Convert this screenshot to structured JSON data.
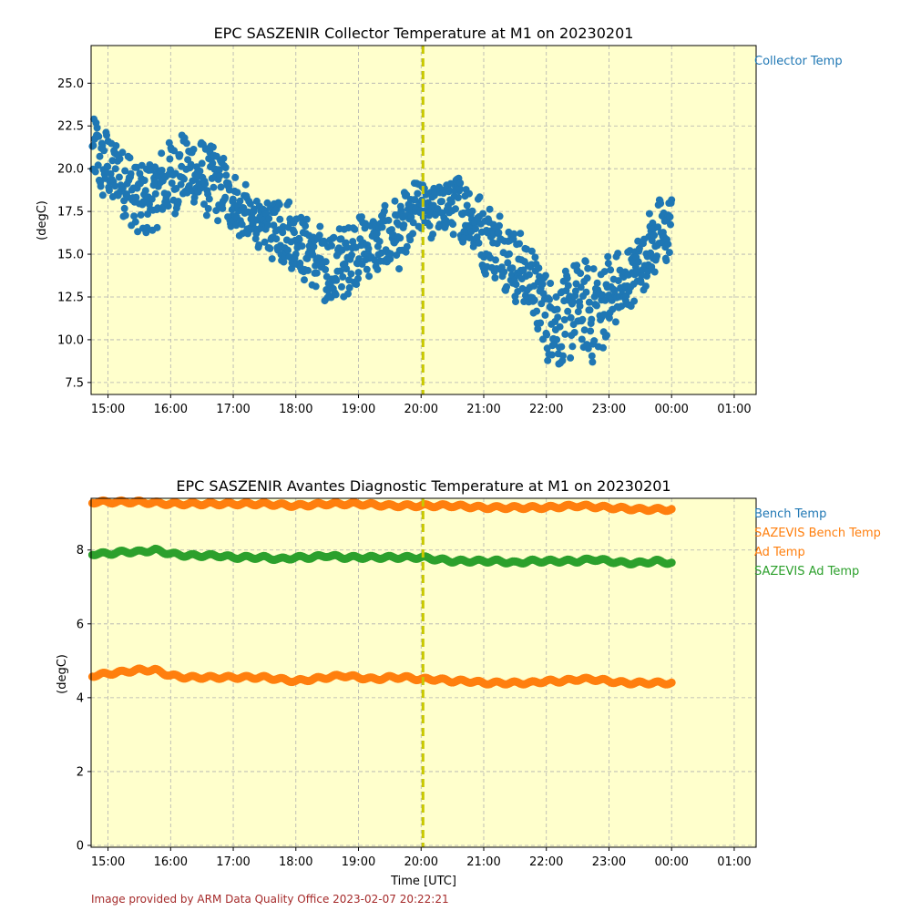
{
  "chart_data": [
    {
      "type": "scatter",
      "title": "EPC SASZENIR Collector Temperature at M1 on 20230201",
      "xlabel": "",
      "ylabel": "(degC)",
      "x_ticks": [
        "15:00",
        "16:00",
        "17:00",
        "18:00",
        "19:00",
        "20:00",
        "21:00",
        "22:00",
        "23:00",
        "00:00",
        "01:00"
      ],
      "x_range_hours": [
        14.73,
        25.35
      ],
      "ylim": [
        6.8,
        27.2
      ],
      "y_ticks": [
        "7.5",
        "10.0",
        "12.5",
        "15.0",
        "17.5",
        "20.0",
        "22.5",
        "25.0"
      ],
      "y_tick_values": [
        7.5,
        10.0,
        12.5,
        15.0,
        17.5,
        20.0,
        22.5,
        25.0
      ],
      "grid": true,
      "background": "#ffffcc",
      "marker_hour": 20.03,
      "marker_color": "#c8c800",
      "legend_position": "right",
      "series": [
        {
          "name": "Collector Temp",
          "color": "#1f77b4",
          "x_hours": [
            14.75,
            15.0,
            15.25,
            15.5,
            15.75,
            16.0,
            16.25,
            16.5,
            16.75,
            17.0,
            17.25,
            17.5,
            17.75,
            18.0,
            18.25,
            18.5,
            18.75,
            19.0,
            19.25,
            19.5,
            19.75,
            20.0,
            20.25,
            20.5,
            20.75,
            21.0,
            21.25,
            21.5,
            21.75,
            22.0,
            22.25,
            22.5,
            22.75,
            23.0,
            23.25,
            23.5,
            23.75,
            24.0
          ],
          "center": [
            21.0,
            20.0,
            19.5,
            18.0,
            18.5,
            19.5,
            20.0,
            19.5,
            19.2,
            18.0,
            17.0,
            16.5,
            16.5,
            16.0,
            15.0,
            14.0,
            14.5,
            15.5,
            15.5,
            16.0,
            16.5,
            18.0,
            17.5,
            18.0,
            17.5,
            16.0,
            15.5,
            14.5,
            13.5,
            11.5,
            11.0,
            12.0,
            11.5,
            12.5,
            13.0,
            14.5,
            16.0,
            16.5
          ],
          "spread": [
            2.0,
            2.0,
            2.0,
            2.2,
            2.0,
            2.0,
            2.0,
            2.0,
            2.0,
            1.5,
            1.5,
            1.3,
            1.8,
            1.8,
            1.8,
            2.0,
            2.2,
            1.8,
            1.5,
            1.8,
            1.8,
            1.5,
            1.5,
            1.5,
            1.8,
            1.8,
            1.8,
            2.0,
            2.0,
            2.5,
            2.5,
            2.5,
            2.8,
            2.5,
            1.8,
            1.6,
            1.8,
            1.8
          ]
        }
      ]
    },
    {
      "type": "scatter",
      "title": "EPC SASZENIR Avantes Diagnostic Temperature at M1 on 20230201",
      "xlabel": "Time [UTC]",
      "ylabel": "(degC)",
      "x_ticks": [
        "15:00",
        "16:00",
        "17:00",
        "18:00",
        "19:00",
        "20:00",
        "21:00",
        "22:00",
        "23:00",
        "00:00",
        "01:00"
      ],
      "x_range_hours": [
        14.73,
        25.35
      ],
      "ylim": [
        -0.05,
        9.4
      ],
      "y_ticks": [
        "0",
        "2",
        "4",
        "6",
        "8"
      ],
      "y_tick_values": [
        0,
        2,
        4,
        6,
        8
      ],
      "grid": true,
      "background": "#ffffcc",
      "marker_hour": 20.03,
      "marker_color": "#c8c800",
      "legend_position": "right",
      "legend": [
        {
          "name": "Bench Temp",
          "color": "#1f77b4"
        },
        {
          "name": "SAZEVIS Bench Temp",
          "color": "#ff7f0e"
        },
        {
          "name": "Ad Temp",
          "color": "#ff7f0e"
        },
        {
          "name": "SAZEVIS Ad Temp",
          "color": "#2ca02c"
        }
      ],
      "series": [
        {
          "name": "SAZEVIS Bench Temp",
          "color": "#ff7f0e",
          "x_hours": [
            14.75,
            15.0,
            15.5,
            16.0,
            16.5,
            17.0,
            17.5,
            18.0,
            18.5,
            19.0,
            19.5,
            20.0,
            20.5,
            21.0,
            21.5,
            22.0,
            22.5,
            23.0,
            23.5,
            24.0
          ],
          "values": [
            9.3,
            9.3,
            9.3,
            9.25,
            9.25,
            9.25,
            9.25,
            9.2,
            9.25,
            9.25,
            9.2,
            9.2,
            9.2,
            9.15,
            9.15,
            9.15,
            9.2,
            9.15,
            9.1,
            9.1
          ]
        },
        {
          "name": "SAZEVIS Ad Temp",
          "color": "#2ca02c",
          "x_hours": [
            14.75,
            15.0,
            15.25,
            15.5,
            15.75,
            16.0,
            16.25,
            16.5,
            16.75,
            17.0,
            17.25,
            17.5,
            17.75,
            18.0,
            18.25,
            18.5,
            18.75,
            19.0,
            19.25,
            19.5,
            19.75,
            20.0,
            20.25,
            20.5,
            20.75,
            21.0,
            21.25,
            21.5,
            21.75,
            22.0,
            22.25,
            22.5,
            22.75,
            23.0,
            23.25,
            23.5,
            23.75,
            24.0
          ],
          "values": [
            7.9,
            7.9,
            7.95,
            7.95,
            8.0,
            7.9,
            7.85,
            7.85,
            7.85,
            7.8,
            7.8,
            7.8,
            7.75,
            7.8,
            7.8,
            7.85,
            7.8,
            7.8,
            7.8,
            7.8,
            7.8,
            7.8,
            7.75,
            7.7,
            7.7,
            7.7,
            7.7,
            7.65,
            7.7,
            7.7,
            7.7,
            7.7,
            7.75,
            7.7,
            7.65,
            7.65,
            7.7,
            7.65
          ]
        },
        {
          "name": "Ad Temp",
          "color": "#ff7f0e",
          "x_hours": [
            14.75,
            15.0,
            15.25,
            15.5,
            15.75,
            16.0,
            16.25,
            16.5,
            16.75,
            17.0,
            17.25,
            17.5,
            17.75,
            18.0,
            18.25,
            18.5,
            18.75,
            19.0,
            19.25,
            19.5,
            19.75,
            20.0,
            20.25,
            20.5,
            20.75,
            21.0,
            21.25,
            21.5,
            21.75,
            22.0,
            22.25,
            22.5,
            22.75,
            23.0,
            23.25,
            23.5,
            23.75,
            24.0
          ],
          "values": [
            4.6,
            4.65,
            4.7,
            4.75,
            4.75,
            4.6,
            4.55,
            4.55,
            4.55,
            4.55,
            4.55,
            4.55,
            4.5,
            4.45,
            4.5,
            4.55,
            4.6,
            4.55,
            4.5,
            4.55,
            4.55,
            4.5,
            4.5,
            4.45,
            4.45,
            4.4,
            4.4,
            4.4,
            4.4,
            4.45,
            4.45,
            4.5,
            4.5,
            4.45,
            4.4,
            4.4,
            4.4,
            4.4
          ]
        }
      ]
    }
  ],
  "footer": "Image provided by ARM Data Quality Office 2023-02-07 20:22:21"
}
